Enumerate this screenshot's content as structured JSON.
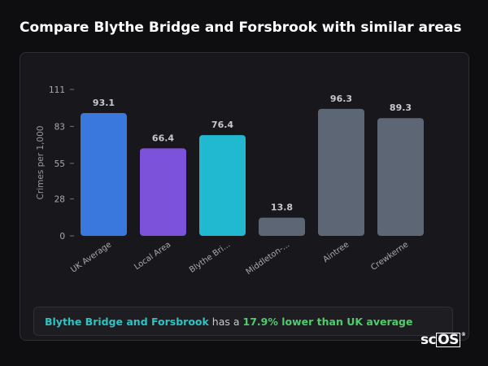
{
  "page": {
    "title": "Compare Blythe Bridge and Forsbrook with similar areas"
  },
  "chart_data": {
    "type": "bar",
    "title": "",
    "xlabel": "",
    "ylabel": "Crimes per 1,000",
    "ylim": [
      0,
      111
    ],
    "y_ticks": [
      0,
      28,
      55,
      83,
      111
    ],
    "grid": false,
    "categories": [
      "UK Average",
      "Local Area",
      "Blythe Bri...",
      "Middleton-...",
      "Aintree",
      "Crewkerne"
    ],
    "values": [
      93.1,
      66.4,
      76.4,
      13.8,
      96.3,
      89.3
    ],
    "value_labels": [
      "93.1",
      "66.4",
      "76.4",
      "13.8",
      "96.3",
      "89.3"
    ],
    "colors": [
      "#3b78de",
      "#7b52d9",
      "#20b9cf",
      "#5d6674",
      "#5d6674",
      "#5d6674"
    ]
  },
  "summary": {
    "place": "Blythe Bridge and Forsbrook",
    "middle": " has a ",
    "difference": "17.9% lower than UK average"
  },
  "logo": {
    "prefix": "sc",
    "boxed": "OS",
    "mark": "®"
  }
}
